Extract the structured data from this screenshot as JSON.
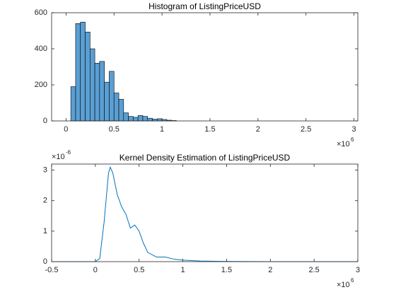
{
  "chart_data": [
    {
      "type": "histogram",
      "title": "Histogram of ListingPriceUSD",
      "bins": [
        50000,
        100000,
        150000,
        200000,
        250000,
        300000,
        350000,
        400000,
        450000,
        500000,
        550000,
        600000,
        650000,
        700000,
        750000,
        800000,
        850000,
        900000,
        950000,
        1000000,
        1050000,
        1100000,
        1150000
      ],
      "counts": [
        190,
        540,
        548,
        493,
        400,
        320,
        330,
        215,
        275,
        155,
        120,
        45,
        25,
        20,
        30,
        25,
        15,
        10,
        12,
        8,
        4,
        2
      ],
      "color": "#5a9fd4",
      "edgecolor": "#000000",
      "xlim": [
        -150000,
        3040000
      ],
      "ylim": [
        0,
        600
      ],
      "xticks": [
        0,
        {
          "value": 500000,
          "label": "0.5"
        },
        {
          "value": 1000000,
          "label": "1"
        },
        {
          "value": 1500000,
          "label": "1.5"
        },
        {
          "value": 2000000,
          "label": "2"
        },
        {
          "value": 2500000,
          "label": "2.5"
        },
        {
          "value": 3000000,
          "label": "3"
        }
      ],
      "yticks": [
        0,
        200,
        400,
        600
      ],
      "x_multiplier": "×10",
      "x_multiplier_power": "6",
      "grid": false
    },
    {
      "type": "line",
      "title": "Kernel Density Estimation of ListingPriceUSD",
      "x": [
        -500000,
        0,
        50000,
        100000,
        150000,
        170000,
        200000,
        250000,
        300000,
        350000,
        400000,
        450000,
        500000,
        550000,
        600000,
        700000,
        800000,
        900000,
        1000000,
        1200000,
        1500000,
        2000000,
        3000000
      ],
      "series": [
        {
          "color": "#0072bd",
          "values": [
            0,
            0,
            1e-07,
            1.3e-06,
            2.9e-06,
            3.1e-06,
            2.9e-06,
            2.2e-06,
            1.8e-06,
            1.55e-06,
            1.1e-06,
            1.2e-06,
            1e-06,
            6e-07,
            3e-07,
            1.5e-07,
            1.5e-07,
            8e-08,
            5e-08,
            2e-08,
            5e-09,
            0,
            0
          ]
        }
      ],
      "xlim": [
        -500000,
        3000000
      ],
      "ylim": [
        0,
        3.2e-06
      ],
      "xticks": [
        {
          "value": -500000,
          "label": "-0.5"
        },
        0,
        {
          "value": 500000,
          "label": "0.5"
        },
        {
          "value": 1000000,
          "label": "1"
        },
        {
          "value": 1500000,
          "label": "1.5"
        },
        {
          "value": 2000000,
          "label": "2"
        },
        {
          "value": 2500000,
          "label": "2.5"
        },
        {
          "value": 3000000,
          "label": "3"
        }
      ],
      "yticks": [
        0,
        {
          "value": 1e-06,
          "label": "1"
        },
        {
          "value": 2e-06,
          "label": "2"
        },
        {
          "value": 3e-06,
          "label": "3"
        }
      ],
      "x_multiplier": "×10",
      "x_multiplier_power": "6",
      "y_multiplier": "×10",
      "y_multiplier_power": "-6",
      "grid": false
    }
  ]
}
